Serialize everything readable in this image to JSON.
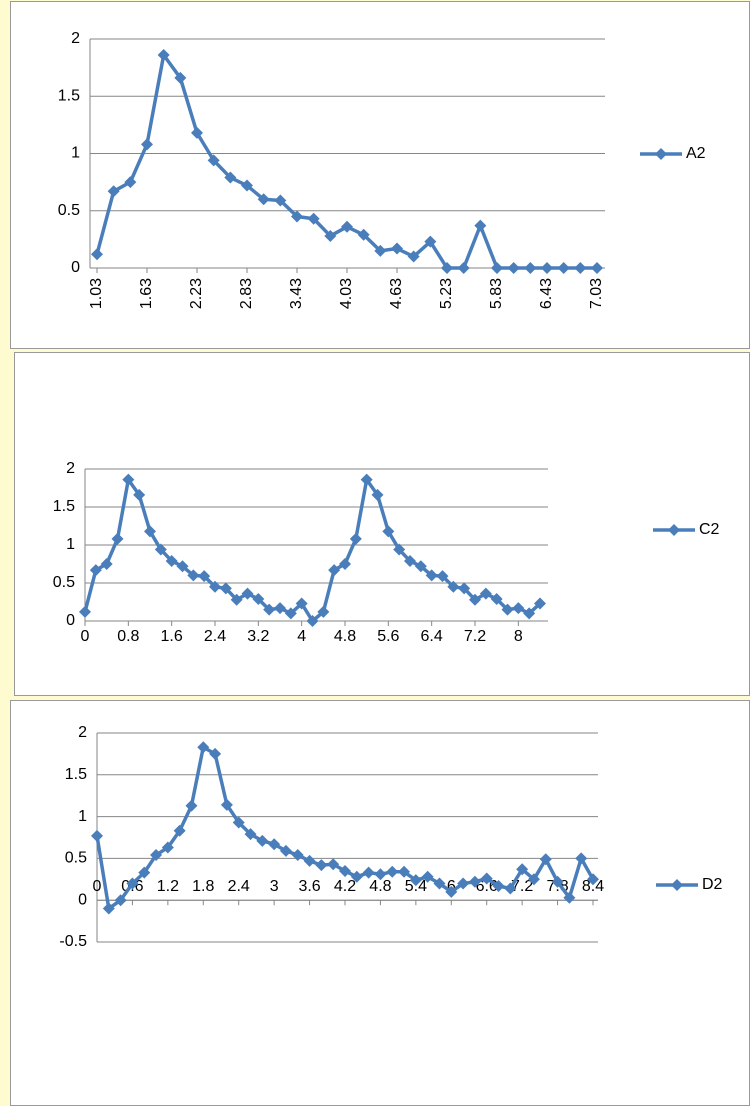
{
  "chart_data": [
    {
      "type": "line",
      "legend": "right",
      "grid": true,
      "categories": [
        "1.03",
        null,
        null,
        "1.63",
        null,
        null,
        "2.23",
        null,
        null,
        "2.83",
        null,
        null,
        "3.43",
        null,
        null,
        "4.03",
        null,
        null,
        "4.63",
        null,
        null,
        "5.23",
        null,
        null,
        "5.83",
        null,
        null,
        "6.43",
        null,
        null,
        "7.03"
      ],
      "series": [
        {
          "name": "A2",
          "color": "#4a7ebb",
          "values": [
            0.12,
            0.67,
            0.75,
            1.08,
            1.86,
            1.66,
            1.18,
            0.94,
            0.79,
            0.72,
            0.6,
            0.59,
            0.45,
            0.43,
            0.28,
            0.36,
            0.29,
            0.15,
            0.17,
            0.1,
            0.23,
            0,
            0,
            0.37,
            0,
            0,
            0,
            0,
            0,
            0,
            0
          ]
        }
      ],
      "ylim": [
        0,
        2
      ],
      "yticks": [
        0,
        0.5,
        1,
        1.5,
        2
      ],
      "xlabel_rotation": 90
    },
    {
      "type": "line",
      "legend": "right",
      "grid": true,
      "categories": [
        "0",
        null,
        null,
        null,
        "0.8",
        null,
        null,
        null,
        "1.6",
        null,
        null,
        null,
        "2.4",
        null,
        null,
        null,
        "3.2",
        null,
        null,
        null,
        "4",
        null,
        null,
        null,
        "4.8",
        null,
        null,
        null,
        "5.6",
        null,
        null,
        null,
        "6.4",
        null,
        null,
        null,
        "7.2",
        null,
        null,
        null,
        "8",
        null,
        null
      ],
      "series": [
        {
          "name": "C2",
          "color": "#4a7ebb",
          "values": [
            0.12,
            0.67,
            0.75,
            1.08,
            1.86,
            1.66,
            1.18,
            0.94,
            0.79,
            0.72,
            0.6,
            0.59,
            0.45,
            0.43,
            0.28,
            0.36,
            0.29,
            0.15,
            0.17,
            0.1,
            0.23,
            0,
            0.12,
            0.67,
            0.75,
            1.08,
            1.86,
            1.66,
            1.18,
            0.94,
            0.79,
            0.72,
            0.6,
            0.59,
            0.45,
            0.43,
            0.28,
            0.36,
            0.29,
            0.15,
            0.17,
            0.1,
            0.23
          ]
        }
      ],
      "ylim": [
        0,
        2
      ],
      "yticks": [
        0,
        0.5,
        1,
        1.5,
        2
      ]
    },
    {
      "type": "line",
      "legend": "right",
      "grid": true,
      "categories": [
        "0",
        null,
        null,
        "0.6",
        null,
        null,
        "1.2",
        null,
        null,
        "1.8",
        null,
        null,
        "2.4",
        null,
        null,
        "3",
        null,
        null,
        "3.6",
        null,
        null,
        "4.2",
        null,
        null,
        "4.8",
        null,
        null,
        "5.4",
        null,
        null,
        "6",
        null,
        null,
        "6.6",
        null,
        null,
        "7.2",
        null,
        null,
        "7.8",
        null,
        null,
        "8.4"
      ],
      "series": [
        {
          "name": "D2",
          "color": "#4a7ebb",
          "values": [
            0.77,
            -0.1,
            0,
            0.2,
            0.33,
            0.54,
            0.63,
            0.83,
            1.13,
            1.83,
            1.75,
            1.14,
            0.93,
            0.79,
            0.71,
            0.67,
            0.59,
            0.54,
            0.47,
            0.42,
            0.43,
            0.35,
            0.28,
            0.33,
            0.31,
            0.34,
            0.34,
            0.24,
            0.28,
            0.2,
            0.1,
            0.2,
            0.22,
            0.26,
            0.17,
            0.14,
            0.37,
            0.25,
            0.49,
            0.22,
            0.03,
            0.5,
            0.25
          ]
        }
      ],
      "ylim": [
        -0.5,
        2
      ],
      "yticks": [
        -0.5,
        0,
        0.5,
        1,
        1.5,
        2
      ]
    }
  ]
}
